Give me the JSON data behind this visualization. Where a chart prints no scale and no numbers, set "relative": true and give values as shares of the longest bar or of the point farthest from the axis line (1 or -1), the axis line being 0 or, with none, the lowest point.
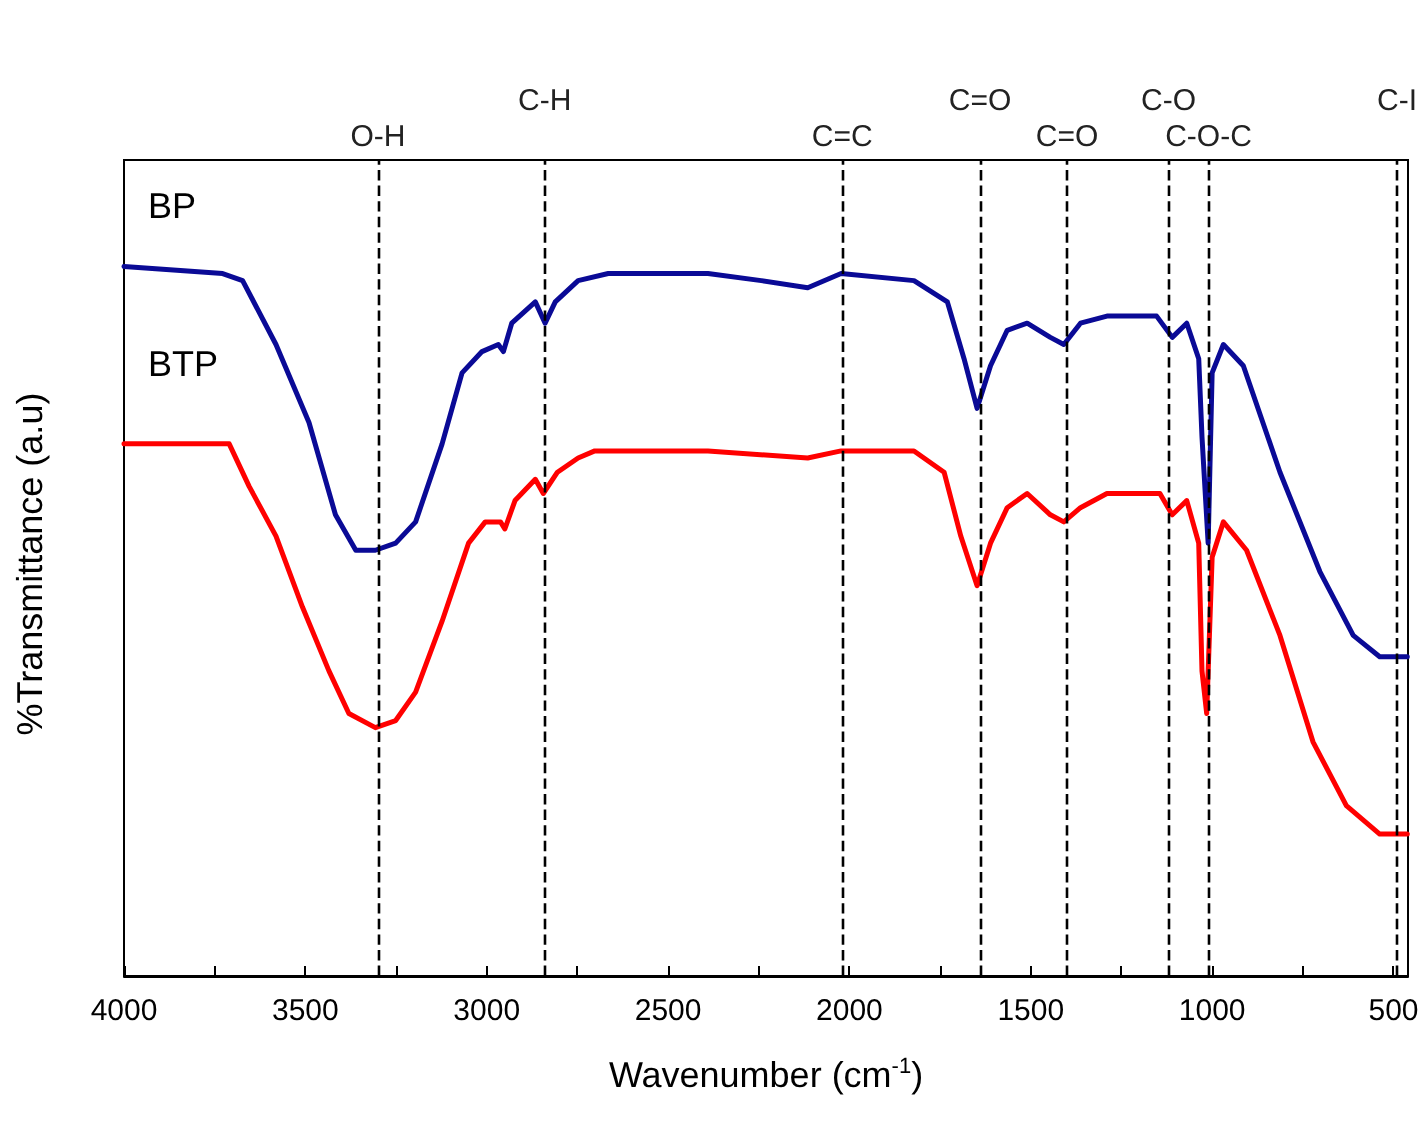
{
  "chart_data": {
    "type": "line",
    "relative": true,
    "xlabel": "Wavenumber (cm$^{-1}$)",
    "ylabel": "%Transmittance (a.u)",
    "xlim": [
      4000,
      460
    ],
    "xticks": [
      4000,
      {
        "value": 3750,
        "label": null
      },
      3500,
      {
        "value": 3250,
        "label": null
      },
      3000,
      {
        "value": 2750,
        "label": null
      },
      2500,
      {
        "value": 2250,
        "label": null
      },
      2000,
      {
        "value": 1750,
        "label": null
      },
      1500,
      {
        "value": 1250,
        "label": null
      },
      1000,
      {
        "value": 750,
        "label": null
      },
      500
    ],
    "grid": false,
    "legend": false,
    "marker": "none",
    "line_style": "solid",
    "series": [
      {
        "name": "BP",
        "color": "#0a0a96",
        "x": [
          4000,
          3728,
          3673,
          3581,
          3490,
          3417,
          3361,
          3307,
          3251,
          3196,
          3123,
          3068,
          3013,
          2968,
          2954,
          2931,
          2866,
          2839,
          2811,
          2748,
          2665,
          2390,
          2243,
          2115,
          2023,
          1822,
          1730,
          1684,
          1648,
          1611,
          1565,
          1510,
          1446,
          1409,
          1363,
          1290,
          1153,
          1110,
          1070,
          1037,
          1028,
          1011,
          1000,
          969,
          914,
          813,
          703,
          611,
          538,
          462
        ],
        "values": [
          1.0,
          0.99,
          0.98,
          0.89,
          0.78,
          0.65,
          0.6,
          0.6,
          0.61,
          0.64,
          0.75,
          0.85,
          0.88,
          0.89,
          0.88,
          0.92,
          0.95,
          0.92,
          0.95,
          0.98,
          0.99,
          0.99,
          0.98,
          0.97,
          0.99,
          0.98,
          0.95,
          0.87,
          0.8,
          0.86,
          0.91,
          0.92,
          0.9,
          0.89,
          0.92,
          0.93,
          0.93,
          0.9,
          0.92,
          0.87,
          0.76,
          0.61,
          0.85,
          0.89,
          0.86,
          0.71,
          0.57,
          0.48,
          0.45,
          0.45
        ]
      },
      {
        "name": "BTP",
        "color": "#ff0000",
        "x": [
          4000,
          3710,
          3655,
          3581,
          3508,
          3435,
          3380,
          3307,
          3251,
          3196,
          3123,
          3050,
          3004,
          2962,
          2950,
          2922,
          2866,
          2844,
          2805,
          2748,
          2702,
          2390,
          2115,
          2023,
          1822,
          1739,
          1693,
          1648,
          1611,
          1565,
          1510,
          1446,
          1409,
          1363,
          1290,
          1144,
          1110,
          1070,
          1037,
          1028,
          1015,
          1000,
          969,
          905,
          813,
          722,
          630,
          538,
          462
        ],
        "values": [
          0.75,
          0.75,
          0.69,
          0.62,
          0.52,
          0.43,
          0.37,
          0.35,
          0.36,
          0.4,
          0.5,
          0.61,
          0.64,
          0.64,
          0.63,
          0.67,
          0.7,
          0.68,
          0.71,
          0.73,
          0.74,
          0.74,
          0.73,
          0.74,
          0.74,
          0.71,
          0.62,
          0.55,
          0.61,
          0.66,
          0.68,
          0.65,
          0.64,
          0.66,
          0.68,
          0.68,
          0.65,
          0.67,
          0.61,
          0.43,
          0.37,
          0.59,
          0.64,
          0.6,
          0.48,
          0.33,
          0.24,
          0.2,
          0.2
        ]
      }
    ],
    "ref_lines": [
      {
        "axis": "x",
        "value": 3300,
        "label": "O-H",
        "line_style": "dashed",
        "color": "#000000"
      },
      {
        "axis": "x",
        "value": 2840,
        "label": "C-H",
        "line_style": "dashed",
        "color": "#000000"
      },
      {
        "axis": "x",
        "value": 2020,
        "label": "C=C",
        "line_style": "dashed",
        "color": "#000000"
      },
      {
        "axis": "x",
        "value": 1640,
        "label": "C=O",
        "line_style": "dashed",
        "color": "#000000"
      },
      {
        "axis": "x",
        "value": 1400,
        "label": "C=O",
        "line_style": "dashed",
        "color": "#000000"
      },
      {
        "axis": "x",
        "value": 1120,
        "label": "C-O",
        "line_style": "dashed",
        "color": "#000000"
      },
      {
        "axis": "x",
        "value": 1010,
        "label": "C-O-C",
        "line_style": "dashed",
        "color": "#000000"
      },
      {
        "axis": "x",
        "value": 490,
        "label": "C-I",
        "line_style": "dashed",
        "color": "#000000"
      }
    ]
  }
}
